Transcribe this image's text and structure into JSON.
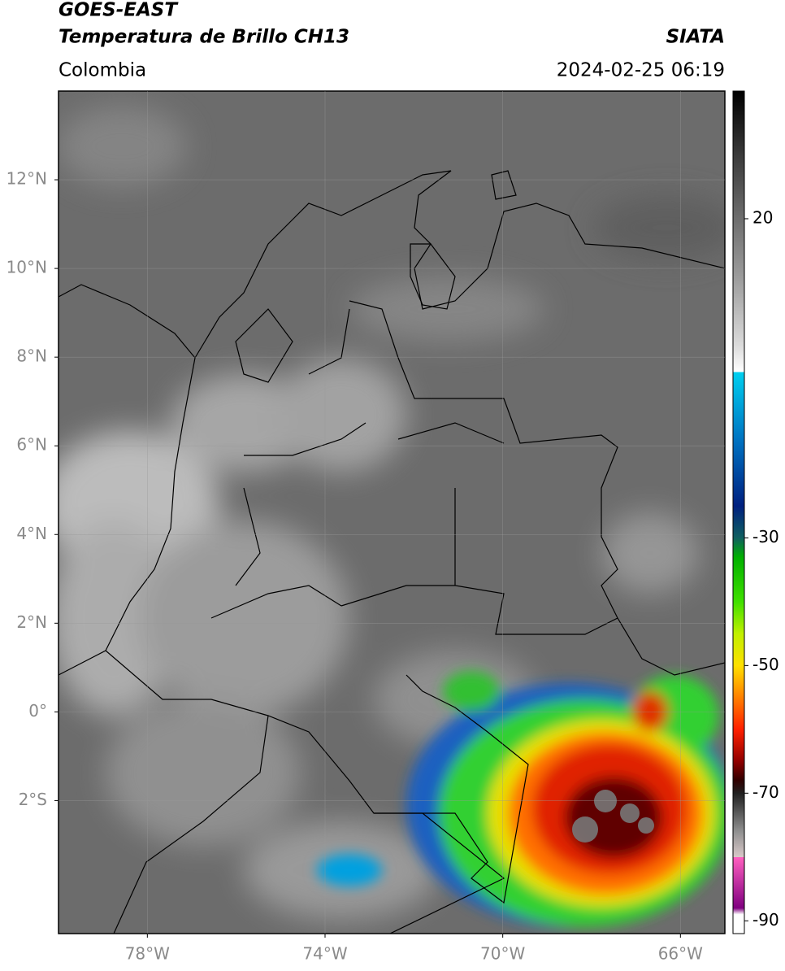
{
  "header": {
    "title": "GOES-EAST",
    "subtitle": "Temperatura de Brillo CH13",
    "region": "Colombia",
    "source": "SIATA",
    "datetime": "2024-02-25 06:19"
  },
  "map": {
    "lon_range": [
      -80,
      -65
    ],
    "lat_range": [
      -5,
      14
    ],
    "grid": true,
    "lon_ticks": [
      {
        "value": -78,
        "label": "78°W"
      },
      {
        "value": -74,
        "label": "74°W"
      },
      {
        "value": -70,
        "label": "70°W"
      },
      {
        "value": -66,
        "label": "66°W"
      }
    ],
    "lat_ticks": [
      {
        "value": 12,
        "label": "12°N"
      },
      {
        "value": 10,
        "label": "10°N"
      },
      {
        "value": 8,
        "label": "8°N"
      },
      {
        "value": 6,
        "label": "6°N"
      },
      {
        "value": 4,
        "label": "4°N"
      },
      {
        "value": 2,
        "label": "2°N"
      },
      {
        "value": 0,
        "label": "0°"
      },
      {
        "value": -2,
        "label": "2°S"
      }
    ]
  },
  "colorbar": {
    "range": [
      -92,
      40
    ],
    "ticks": [
      20,
      -30,
      -50,
      -70,
      -90
    ],
    "stops": [
      {
        "value": 40,
        "color": "#000000"
      },
      {
        "value": 30,
        "color": "#3a3a3a"
      },
      {
        "value": 20,
        "color": "#6e6e6e"
      },
      {
        "value": 10,
        "color": "#a0a0a0"
      },
      {
        "value": 0,
        "color": "#dcdcdc"
      },
      {
        "value": -4,
        "color": "#ffffff"
      },
      {
        "value": -4,
        "color": "#00d0f0"
      },
      {
        "value": -15,
        "color": "#0070c0"
      },
      {
        "value": -25,
        "color": "#002080"
      },
      {
        "value": -30,
        "color": "#106060"
      },
      {
        "value": -33,
        "color": "#00b000"
      },
      {
        "value": -40,
        "color": "#40e000"
      },
      {
        "value": -45,
        "color": "#c0f000"
      },
      {
        "value": -50,
        "color": "#ffe000"
      },
      {
        "value": -55,
        "color": "#ff8000"
      },
      {
        "value": -60,
        "color": "#ff2000"
      },
      {
        "value": -65,
        "color": "#900000"
      },
      {
        "value": -68,
        "color": "#300000"
      },
      {
        "value": -70,
        "color": "#202020"
      },
      {
        "value": -76,
        "color": "#909090"
      },
      {
        "value": -80,
        "color": "#d8c8c8"
      },
      {
        "value": -80,
        "color": "#ff60c0"
      },
      {
        "value": -88,
        "color": "#800080"
      },
      {
        "value": -89,
        "color": "#ffffff"
      },
      {
        "value": -92,
        "color": "#ffffff"
      }
    ]
  }
}
